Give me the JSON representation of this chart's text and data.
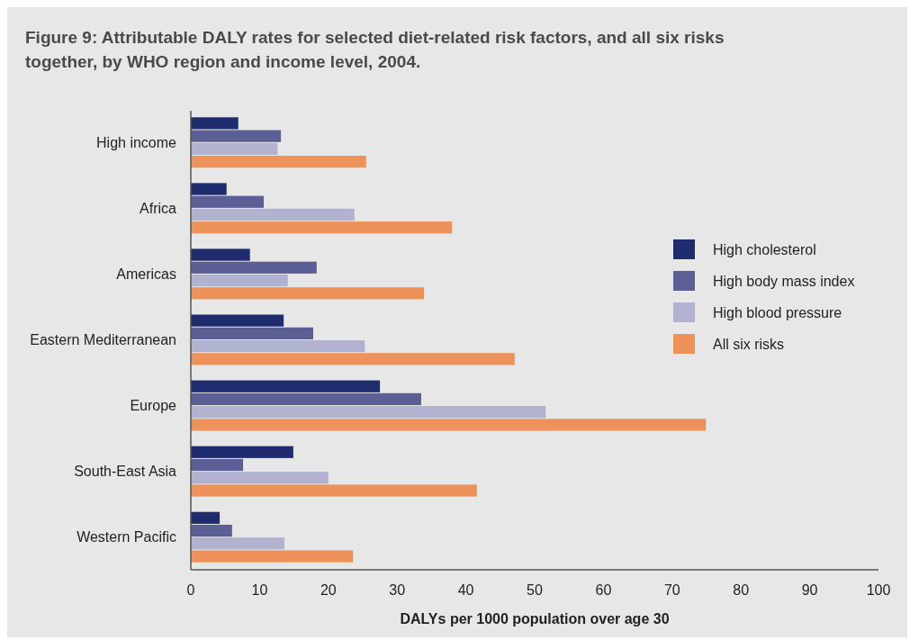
{
  "chart_data": {
    "type": "bar",
    "orientation": "horizontal",
    "title": "Figure 9: Attributable DALY rates for selected diet-related risk factors, and all six risks together, by WHO region and income level, 2004.",
    "xlabel": "DALYs per 1000 population over age 30",
    "categories": [
      "High income",
      "Africa",
      "Americas",
      "Eastern Mediterranean",
      "Europe",
      "South-East Asia",
      "Western Pacific"
    ],
    "series": [
      {
        "name": "High cholesterol",
        "color": "#1f2d6e",
        "values": [
          6.9,
          5.2,
          8.6,
          13.5,
          27.5,
          14.9,
          4.2
        ]
      },
      {
        "name": "High body mass index",
        "color": "#5c5f95",
        "values": [
          13.1,
          10.6,
          18.3,
          17.8,
          33.5,
          7.6,
          6.0
        ]
      },
      {
        "name": "High blood pressure",
        "color": "#b0b2cf",
        "values": [
          12.6,
          23.8,
          14.1,
          25.3,
          51.6,
          20.0,
          13.6
        ]
      },
      {
        "name": "All six risks",
        "color": "#ec925a",
        "values": [
          25.5,
          38.0,
          33.9,
          47.1,
          74.9,
          41.6,
          23.6
        ]
      }
    ],
    "xlim": [
      0,
      100
    ],
    "xticks": [
      0,
      10,
      20,
      30,
      40,
      50,
      60,
      70,
      80,
      90,
      100
    ],
    "grid": false,
    "legend": "right"
  }
}
